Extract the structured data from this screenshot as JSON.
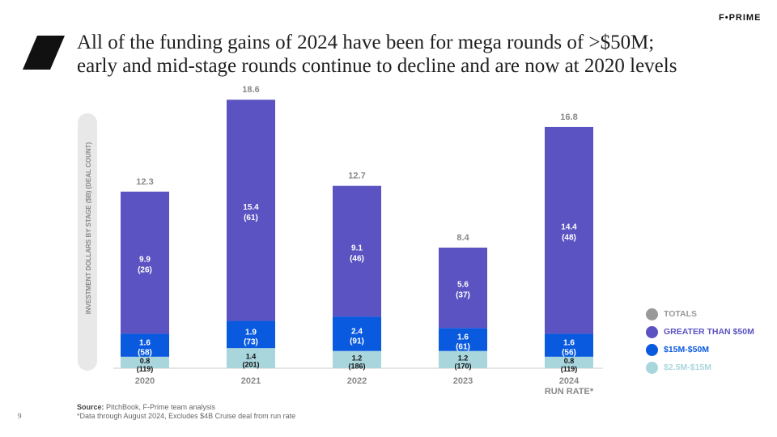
{
  "header": {
    "title_line1": "All of the funding gains of 2024 have been for mega rounds of >$50M;",
    "title_line2": "early and mid-stage rounds continue to decline and are now at 2020 levels",
    "brand": "F•PRIME"
  },
  "colors": {
    "totals": "#999999",
    "mega": "#5b53c1",
    "mid": "#0a5ae0",
    "early": "#a9d6dd",
    "yaxis_bg": "#e8e8e8"
  },
  "chart_data": {
    "type": "bar",
    "stacked": true,
    "ylabel": "INVESTMENT DOLLARS BY STAGE ($B)  (DEAL COUNT)",
    "categories": [
      {
        "line1": "2020",
        "line2": ""
      },
      {
        "line1": "2021",
        "line2": ""
      },
      {
        "line1": "2022",
        "line2": ""
      },
      {
        "line1": "2023",
        "line2": ""
      },
      {
        "line1": "2024",
        "line2": "RUN RATE*"
      }
    ],
    "totals": [
      "12.3",
      "18.6",
      "12.7",
      "8.4",
      "16.8"
    ],
    "series": [
      {
        "name": "$2.5M-$15M",
        "key": "early",
        "values": [
          0.8,
          1.4,
          1.2,
          1.2,
          0.8
        ],
        "labels": [
          "0.8",
          "1.4",
          "1.2",
          "1.2",
          "0.8"
        ],
        "counts": [
          "(119)",
          "(201)",
          "(186)",
          "(170)",
          "(119)"
        ]
      },
      {
        "name": "$15M-$50M",
        "key": "mid",
        "values": [
          1.6,
          1.9,
          2.4,
          1.6,
          1.6
        ],
        "labels": [
          "1.6",
          "1.9",
          "2.4",
          "1.6",
          "1.6"
        ],
        "counts": [
          "(58)",
          "(73)",
          "(91)",
          "(61)",
          "(56)"
        ]
      },
      {
        "name": "GREATER THAN $50M",
        "key": "mega",
        "values": [
          9.9,
          15.4,
          9.1,
          5.6,
          14.4
        ],
        "labels": [
          "9.9",
          "15.4",
          "9.1",
          "5.6",
          "14.4"
        ],
        "counts": [
          "(26)",
          "(61)",
          "(46)",
          "(37)",
          "(48)"
        ]
      }
    ],
    "ylim": [
      0,
      18.6
    ],
    "grid": false,
    "legend_position": "bottom-right"
  },
  "legend": [
    {
      "label": "TOTALS",
      "color_key": "totals"
    },
    {
      "label": "GREATER THAN $50M",
      "color_key": "mega"
    },
    {
      "label": "$15M-$50M",
      "color_key": "mid"
    },
    {
      "label": "$2.5M-$15M",
      "color_key": "early"
    }
  ],
  "footer": {
    "source_label": "Source:",
    "source_text": " PitchBook, F-Prime team analysis",
    "note": "*Data through August 2024, Excludes $4B Cruise deal from run rate",
    "page": "9"
  }
}
